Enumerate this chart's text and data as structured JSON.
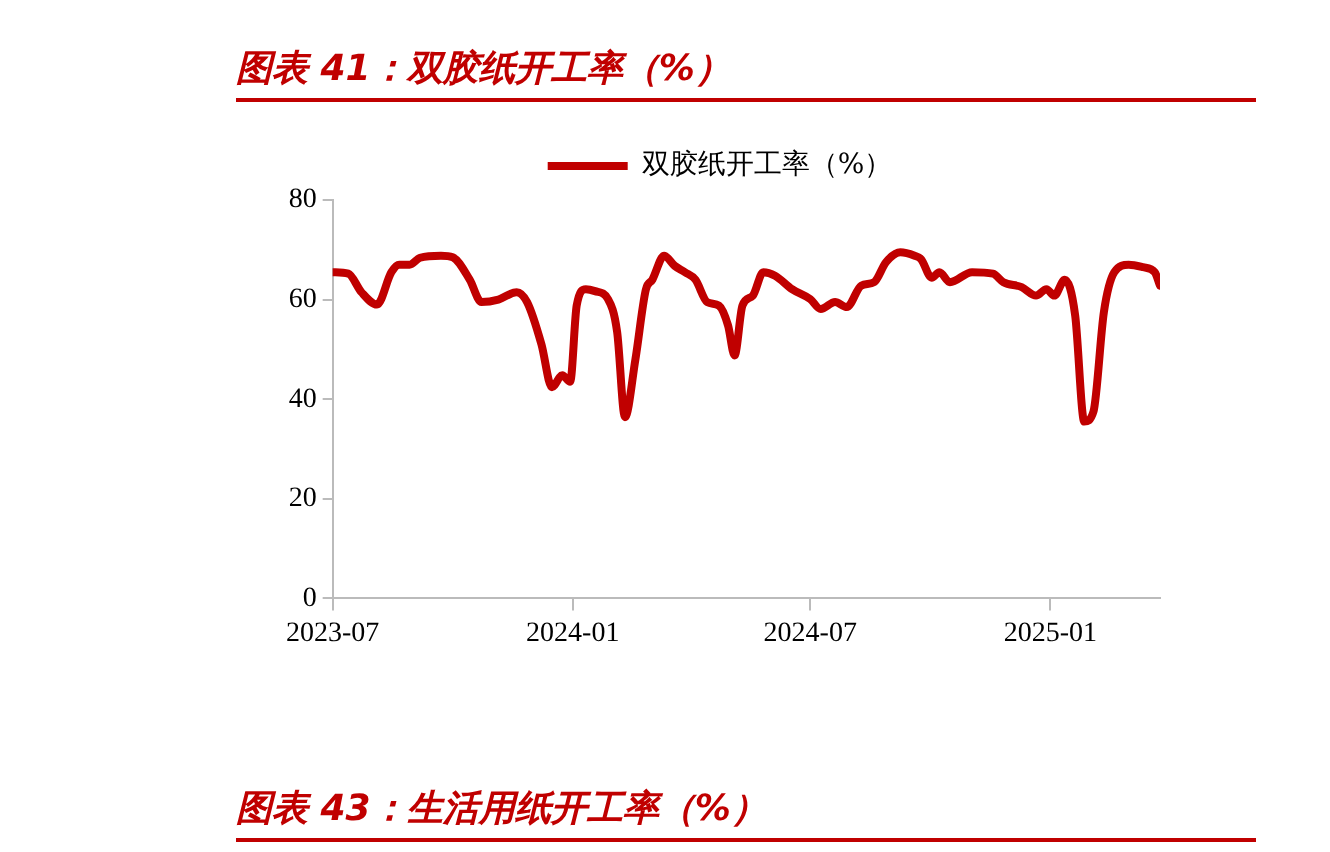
{
  "chart_data": {
    "type": "line",
    "title": "图表 41：双胶纸开工率（%）",
    "annotations": [
      "图表 43：生活用纸开工率（%）"
    ],
    "x": [
      "2023-07-01",
      "2023-07-13",
      "2023-07-23",
      "2023-08-04",
      "2023-08-15",
      "2023-08-21",
      "2023-08-29",
      "2023-09-06",
      "2023-09-22",
      "2023-10-01",
      "2023-10-14",
      "2023-10-23",
      "2023-11-05",
      "2023-11-19",
      "2023-11-27",
      "2023-12-08",
      "2023-12-16",
      "2023-12-24",
      "2023-12-30",
      "2024-01-04",
      "2024-01-11",
      "2024-01-18",
      "2024-01-28",
      "2024-02-04",
      "2024-02-10",
      "2024-02-18",
      "2024-02-26",
      "2024-03-02",
      "2024-03-11",
      "2024-03-19",
      "2024-03-27",
      "2024-04-04",
      "2024-04-13",
      "2024-04-22",
      "2024-04-29",
      "2024-05-04",
      "2024-05-10",
      "2024-05-18",
      "2024-05-26",
      "2024-06-04",
      "2024-06-17",
      "2024-07-01",
      "2024-07-09",
      "2024-07-20",
      "2024-07-29",
      "2024-08-09",
      "2024-08-19",
      "2024-08-28",
      "2024-09-08",
      "2024-09-19",
      "2024-09-24",
      "2024-10-02",
      "2024-10-08",
      "2024-10-16",
      "2024-11-02",
      "2024-11-18",
      "2024-11-26",
      "2024-12-10",
      "2024-12-21",
      "2024-12-29",
      "2025-01-04",
      "2025-01-12",
      "2025-01-20",
      "2025-01-27",
      "2025-02-03",
      "2025-02-11",
      "2025-02-19",
      "2025-03-02",
      "2025-03-13",
      "2025-03-22",
      "2025-03-26"
    ],
    "series": [
      {
        "name": "双胶纸开工率（%）",
        "color": "#c00000",
        "values": [
          65.5,
          65.2,
          61.5,
          59,
          65.5,
          67,
          67,
          68.4,
          68.8,
          68.5,
          64,
          59.5,
          60,
          61.5,
          59.5,
          51,
          42.4,
          44.8,
          43.5,
          58.8,
          62.1,
          61.7,
          60.1,
          53.5,
          36.4,
          48,
          62,
          64,
          68.8,
          66.8,
          65.5,
          64,
          59.5,
          58.8,
          54.8,
          48.8,
          58.8,
          60.8,
          65.5,
          64.8,
          62.1,
          60.1,
          58.1,
          59.5,
          58.5,
          62.8,
          63.5,
          67.5,
          69.5,
          68.8,
          68.1,
          64.4,
          65.5,
          63.5,
          65.5,
          65.2,
          63.5,
          62.5,
          60.8,
          62.1,
          60.8,
          64,
          56.8,
          35.5,
          37.5,
          57.5,
          65.5,
          67,
          66.5,
          65.5,
          62.8
        ]
      }
    ],
    "xlim": [
      "2023-07",
      "2025-03-26"
    ],
    "xticks": [
      "2023-07",
      "2024-01",
      "2024-07",
      "2025-01"
    ],
    "ylim": [
      0,
      80
    ],
    "yticks": [
      0,
      20,
      40,
      60,
      80
    ],
    "grid": false,
    "legend": "top",
    "marker": "none",
    "line_style": "solid"
  }
}
